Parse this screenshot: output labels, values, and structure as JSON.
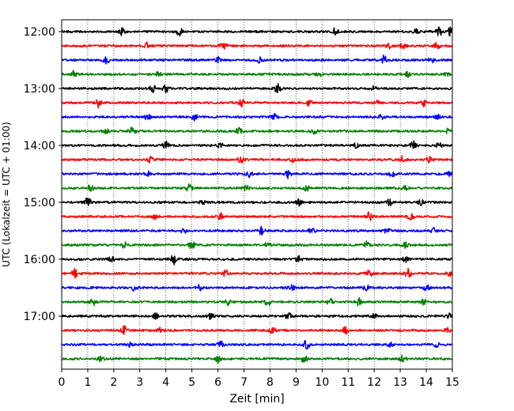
{
  "chart_data": {
    "type": "line",
    "subtype": "helicorder-seismogram",
    "title": "",
    "xlabel": "Zeit  [min]",
    "ylabel": "UTC (Lokalzeit = UTC + 01:00)",
    "xlim": [
      0,
      15
    ],
    "x_ticks": [
      "0",
      "1",
      "2",
      "3",
      "4",
      "5",
      "6",
      "7",
      "8",
      "9",
      "10",
      "11",
      "12",
      "13",
      "14",
      "15"
    ],
    "x_grid": "dotted vertical lines at each minute",
    "trace_interval_minutes": 15,
    "trace_count": 24,
    "y_ticks": [
      {
        "label": "12:00",
        "trace_index": 0
      },
      {
        "label": "13:00",
        "trace_index": 4
      },
      {
        "label": "14:00",
        "trace_index": 8
      },
      {
        "label": "15:00",
        "trace_index": 12
      },
      {
        "label": "16:00",
        "trace_index": 16
      },
      {
        "label": "17:00",
        "trace_index": 20
      }
    ],
    "trace_colors": [
      "#000000",
      "#ff0000",
      "#0000ff",
      "#008000"
    ],
    "series": [
      {
        "start": "12:00",
        "events": [
          [
            2.3,
            0.9
          ],
          [
            4.5,
            1.3
          ],
          [
            10.5,
            1.0
          ],
          [
            13.6,
            0.8
          ],
          [
            14.5,
            1.5
          ],
          [
            14.9,
            1.2
          ]
        ]
      },
      {
        "start": "12:15",
        "events": [
          [
            3.3,
            1.0
          ],
          [
            6.2,
            1.3
          ],
          [
            12.6,
            0.6
          ],
          [
            13.1,
            0.9
          ],
          [
            14.4,
            0.8
          ]
        ]
      },
      {
        "start": "12:30",
        "events": [
          [
            1.7,
            0.9
          ],
          [
            6.0,
            1.1
          ],
          [
            7.6,
            0.7
          ],
          [
            12.4,
            1.4
          ],
          [
            14.2,
            0.7
          ]
        ]
      },
      {
        "start": "12:45",
        "events": [
          [
            0.5,
            1.0
          ],
          [
            3.7,
            0.7
          ],
          [
            9.9,
            0.9
          ],
          [
            13.3,
            0.8
          ],
          [
            14.8,
            0.6
          ]
        ]
      },
      {
        "start": "13:00",
        "events": [
          [
            3.5,
            1.2
          ],
          [
            4.0,
            1.3
          ],
          [
            8.3,
            1.2
          ],
          [
            12.0,
            0.6
          ]
        ]
      },
      {
        "start": "13:15",
        "events": [
          [
            1.4,
            1.3
          ],
          [
            6.9,
            1.1
          ],
          [
            9.5,
            0.9
          ],
          [
            12.1,
            0.7
          ],
          [
            13.9,
            1.0
          ]
        ]
      },
      {
        "start": "13:30",
        "events": [
          [
            3.3,
            0.8
          ],
          [
            5.1,
            0.9
          ],
          [
            8.2,
            1.0
          ],
          [
            12.3,
            0.7
          ],
          [
            14.4,
            0.8
          ]
        ]
      },
      {
        "start": "13:45",
        "events": [
          [
            1.7,
            0.8
          ],
          [
            2.7,
            1.2
          ],
          [
            6.8,
            1.0
          ],
          [
            9.7,
            0.9
          ],
          [
            14.8,
            0.6
          ]
        ]
      },
      {
        "start": "14:00",
        "events": [
          [
            4.0,
            1.0
          ],
          [
            6.1,
            0.7
          ],
          [
            11.3,
            0.7
          ],
          [
            13.5,
            1.2
          ],
          [
            14.5,
            0.8
          ]
        ]
      },
      {
        "start": "14:15",
        "events": [
          [
            3.4,
            1.0
          ],
          [
            6.9,
            1.0
          ],
          [
            8.9,
            0.7
          ],
          [
            13.1,
            1.1
          ],
          [
            14.1,
            0.7
          ]
        ]
      },
      {
        "start": "14:30",
        "events": [
          [
            3.3,
            0.8
          ],
          [
            7.2,
            0.8
          ],
          [
            8.7,
            1.2
          ],
          [
            12.7,
            0.9
          ],
          [
            14.9,
            0.7
          ]
        ]
      },
      {
        "start": "14:45",
        "events": [
          [
            1.1,
            0.9
          ],
          [
            4.9,
            1.0
          ],
          [
            7.1,
            0.9
          ],
          [
            9.4,
            0.8
          ],
          [
            13.2,
            0.7
          ]
        ]
      },
      {
        "start": "15:00",
        "events": [
          [
            1.0,
            1.3
          ],
          [
            5.4,
            0.7
          ],
          [
            9.1,
            1.1
          ],
          [
            12.6,
            0.9
          ],
          [
            13.8,
            0.7
          ]
        ]
      },
      {
        "start": "15:15",
        "events": [
          [
            3.6,
            0.8
          ],
          [
            6.1,
            0.9
          ],
          [
            11.8,
            1.3
          ],
          [
            13.4,
            0.8
          ]
        ]
      },
      {
        "start": "15:30",
        "events": [
          [
            4.7,
            0.7
          ],
          [
            7.7,
            1.6
          ],
          [
            9.6,
            1.0
          ],
          [
            12.5,
            0.8
          ],
          [
            14.3,
            0.7
          ]
        ]
      },
      {
        "start": "15:45",
        "events": [
          [
            2.4,
            0.8
          ],
          [
            5.0,
            1.1
          ],
          [
            7.9,
            0.8
          ],
          [
            11.7,
            0.9
          ],
          [
            13.2,
            0.8
          ]
        ]
      },
      {
        "start": "16:00",
        "events": [
          [
            1.9,
            0.8
          ],
          [
            4.3,
            1.8
          ],
          [
            9.1,
            0.9
          ],
          [
            13.2,
            0.7
          ]
        ]
      },
      {
        "start": "16:15",
        "events": [
          [
            0.5,
            1.2
          ],
          [
            6.3,
            0.8
          ],
          [
            11.8,
            1.3
          ],
          [
            13.3,
            1.3
          ],
          [
            14.9,
            0.7
          ]
        ]
      },
      {
        "start": "16:30",
        "events": [
          [
            2.8,
            0.8
          ],
          [
            5.3,
            0.8
          ],
          [
            8.8,
            1.1
          ],
          [
            11.7,
            0.7
          ],
          [
            14.0,
            0.9
          ]
        ]
      },
      {
        "start": "16:45",
        "events": [
          [
            1.2,
            1.0
          ],
          [
            6.4,
            0.8
          ],
          [
            7.9,
            1.2
          ],
          [
            10.3,
            1.0
          ],
          [
            11.4,
            1.1
          ],
          [
            13.9,
            1.0
          ]
        ]
      },
      {
        "start": "17:00",
        "events": [
          [
            3.6,
            0.9
          ],
          [
            5.7,
            0.8
          ],
          [
            8.7,
            0.9
          ],
          [
            12.0,
            0.7
          ],
          [
            14.9,
            0.8
          ]
        ]
      },
      {
        "start": "17:15",
        "events": [
          [
            2.4,
            1.3
          ],
          [
            3.8,
            0.9
          ],
          [
            8.1,
            0.8
          ],
          [
            10.9,
            1.1
          ],
          [
            14.8,
            1.0
          ]
        ]
      },
      {
        "start": "17:30",
        "events": [
          [
            2.6,
            0.7
          ],
          [
            6.1,
            0.9
          ],
          [
            9.4,
            1.3
          ],
          [
            12.6,
            0.7
          ],
          [
            14.4,
            0.6
          ]
        ]
      },
      {
        "start": "17:45",
        "events": [
          [
            1.5,
            0.9
          ],
          [
            6.0,
            1.1
          ],
          [
            9.3,
            1.2
          ],
          [
            13.1,
            1.0
          ]
        ]
      }
    ]
  }
}
